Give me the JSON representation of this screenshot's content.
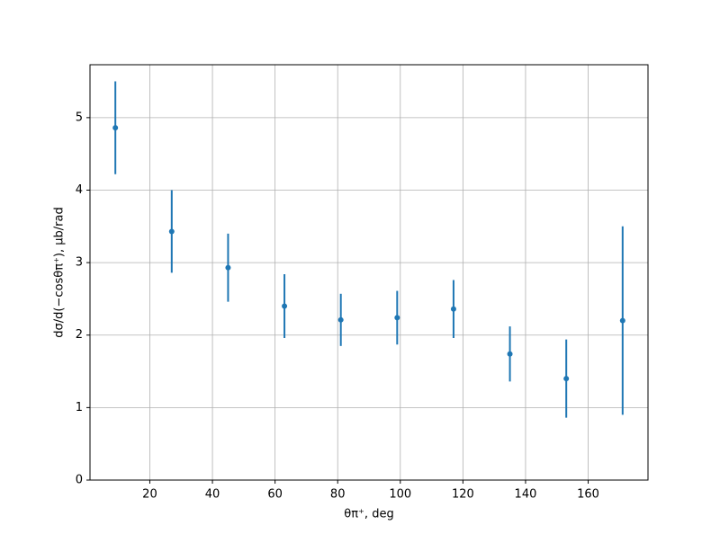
{
  "chart_data": {
    "type": "errorbar",
    "xlabel": "θπ⁺, deg",
    "ylabel": "dσ/d(−cosθπ⁺), μb/rad",
    "x": [
      9,
      27,
      45,
      63,
      81,
      99,
      117,
      135,
      153,
      171
    ],
    "series": [
      {
        "color": "#1f77b4",
        "values": [
          4.86,
          3.43,
          2.93,
          2.4,
          2.21,
          2.24,
          2.36,
          1.74,
          1.4,
          2.2
        ],
        "errors": [
          0.64,
          0.57,
          0.47,
          0.44,
          0.36,
          0.37,
          0.4,
          0.38,
          0.54,
          1.3
        ]
      }
    ],
    "xlim": [
      0.9,
      179.1
    ],
    "ylim": [
      0,
      5.73
    ],
    "xticks": [
      20,
      40,
      60,
      80,
      100,
      120,
      140,
      160
    ],
    "yticks": [
      0,
      1,
      2,
      3,
      4,
      5
    ],
    "grid": true
  }
}
